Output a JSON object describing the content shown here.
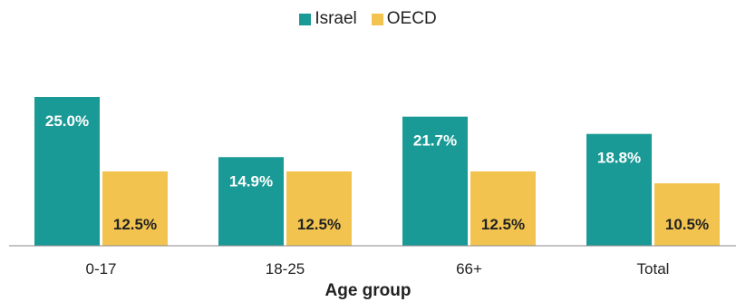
{
  "chart_data": {
    "type": "bar",
    "xlabel": "Age group",
    "categories": [
      "0-17",
      "18-25",
      "66+",
      "Total"
    ],
    "series": [
      {
        "name": "Israel",
        "values": [
          25.0,
          14.9,
          21.7,
          18.8
        ],
        "labels": [
          "25.0%",
          "14.9%",
          "21.7%",
          "18.8%"
        ],
        "color": "#1a9a96"
      },
      {
        "name": "OECD",
        "values": [
          12.5,
          12.5,
          12.5,
          10.5
        ],
        "labels": [
          "12.5%",
          "12.5%",
          "12.5%",
          "10.5%"
        ],
        "color": "#f2c44f"
      }
    ],
    "ylim": [
      0,
      25
    ],
    "legend_position": "top-center",
    "grid": false
  }
}
